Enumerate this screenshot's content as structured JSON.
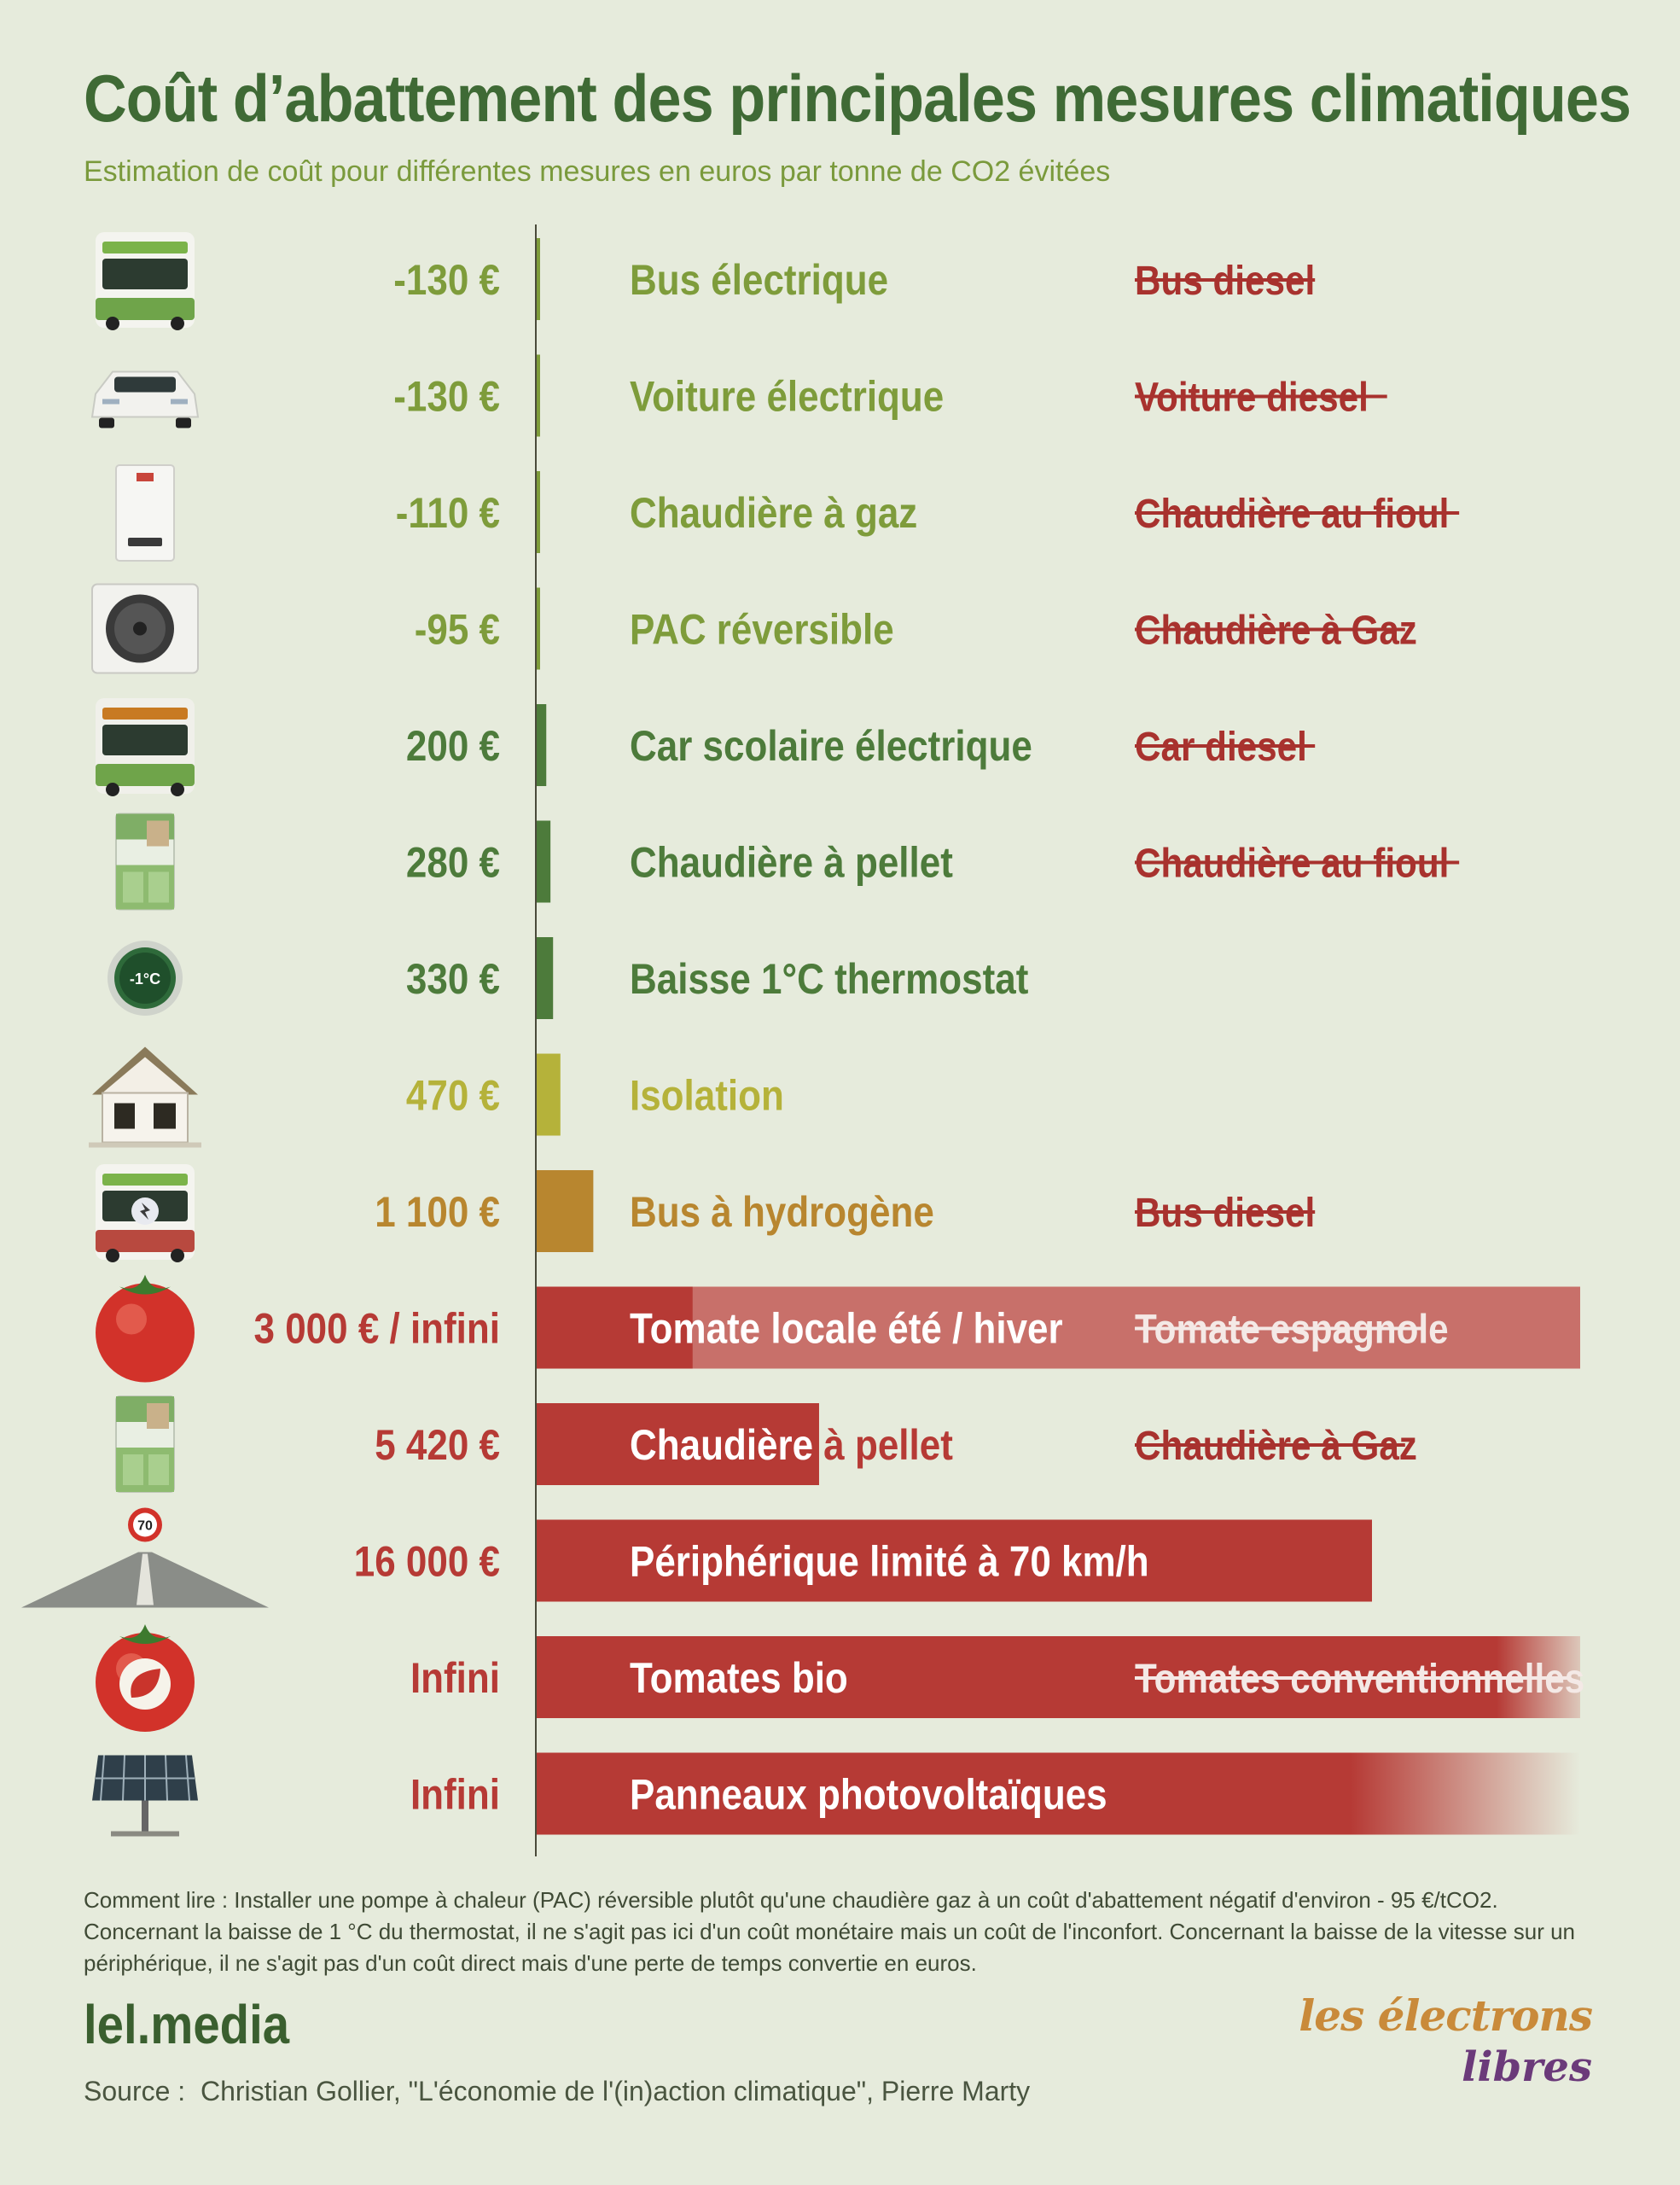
{
  "title": "Coût d’abattement des principales mesures climatiques",
  "subtitle": "Estimation de coût pour différentes mesures en euros par tonne de CO2 évitées",
  "chart_data": {
    "type": "bar",
    "title": "Coût d’abattement des principales mesures climatiques",
    "subtitle": "Estimation de coût pour différentes mesures en euros par tonne de CO2 évitées",
    "unit": "€/tCO2",
    "rows": [
      {
        "icon": "electric-bus-icon",
        "value": -130,
        "value_label": "-130 €",
        "label": "Bus électrique",
        "replaces": "Bus diesel",
        "color": "#7e9c3b"
      },
      {
        "icon": "electric-car-icon",
        "value": -130,
        "value_label": "-130 €",
        "label": "Voiture électrique",
        "replaces": "Voiture diesel",
        "color": "#7e9c3b"
      },
      {
        "icon": "gas-boiler-icon",
        "value": -110,
        "value_label": "-110 €",
        "label": "Chaudière à gaz",
        "replaces": "Chaudière au fioul",
        "color": "#7e9c3b"
      },
      {
        "icon": "heat-pump-icon",
        "value": -95,
        "value_label": "-95 €",
        "label": "PAC réversible",
        "replaces": "Chaudière à Gaz",
        "color": "#7e9c3b"
      },
      {
        "icon": "school-bus-icon",
        "value": 200,
        "value_label": "200 €",
        "label": "Car scolaire électrique",
        "replaces": "Car diesel",
        "color": "#4d7b3b"
      },
      {
        "icon": "pellet-boiler-icon",
        "value": 280,
        "value_label": "280 €",
        "label": "Chaudière à pellet",
        "replaces": "Chaudière au fioul",
        "color": "#4d7b3b"
      },
      {
        "icon": "thermostat-icon",
        "value": 330,
        "value_label": "330 €",
        "label": "Baisse 1°C thermostat",
        "replaces": "",
        "color": "#4d7b3b"
      },
      {
        "icon": "house-icon",
        "value": 470,
        "value_label": "470 €",
        "label": "Isolation",
        "replaces": "",
        "color": "#b5b23a"
      },
      {
        "icon": "hydrogen-bus-icon",
        "value": 1100,
        "value_label": "1 100 €",
        "label": "Bus à hydrogène",
        "replaces": "Bus diesel",
        "color": "#b8862f"
      },
      {
        "icon": "tomato-icon",
        "value": 3000,
        "value_label": "3 000 € / infini",
        "label": "Tomate locale été / hiver",
        "replaces": "Tomate espagnole",
        "color": "#b63a35",
        "extends_to_infinity": true
      },
      {
        "icon": "pellet-boiler-icon",
        "value": 5420,
        "value_label": "5 420 €",
        "label": "Chaudière à pellet",
        "replaces": "Chaudière à Gaz",
        "color": "#b63a35"
      },
      {
        "icon": "road-70-icon",
        "value": 16000,
        "value_label": "16 000 €",
        "label": "Périphérique limité à 70 km/h",
        "replaces": "",
        "color": "#b63a35"
      },
      {
        "icon": "organic-tomato-icon",
        "value": "infinite",
        "value_label": "Infini",
        "label": "Tomates bio",
        "replaces": "Tomates conventionnelles",
        "color": "#b63a35"
      },
      {
        "icon": "solar-panel-icon",
        "value": "infinite",
        "value_label": "Infini",
        "label": "Panneaux photovoltaïques",
        "replaces": "",
        "color": "#b63a35"
      }
    ]
  },
  "note": "Comment lire : Installer une pompe à chaleur (PAC) réversible plutôt qu'une chaudière gaz à un coût d'abattement négatif d'environ - 95 €/tCO2. Concernant la baisse de 1 °C du thermostat, il ne s'agit pas ici d'un coût monétaire mais un coût de l'inconfort. Concernant la baisse de la vitesse sur un périphérique, il ne s'agit pas d'un coût direct mais d'une perte de temps convertie en euros.",
  "brand": "lel.media",
  "source": "Source :  Christian Gollier, \"L'économie de l'(in)action climatique\", Pierre Marty",
  "logo": {
    "line1": "les électrons",
    "line2": "libres"
  },
  "colors": {
    "background": "#e6ebdc",
    "title": "#3f6a35",
    "negative": "#7e9c3b",
    "low": "#4d7b3b",
    "mid": "#b5b23a",
    "high": "#b8862f",
    "very_high": "#b63a35",
    "strike": "#a8322e"
  }
}
